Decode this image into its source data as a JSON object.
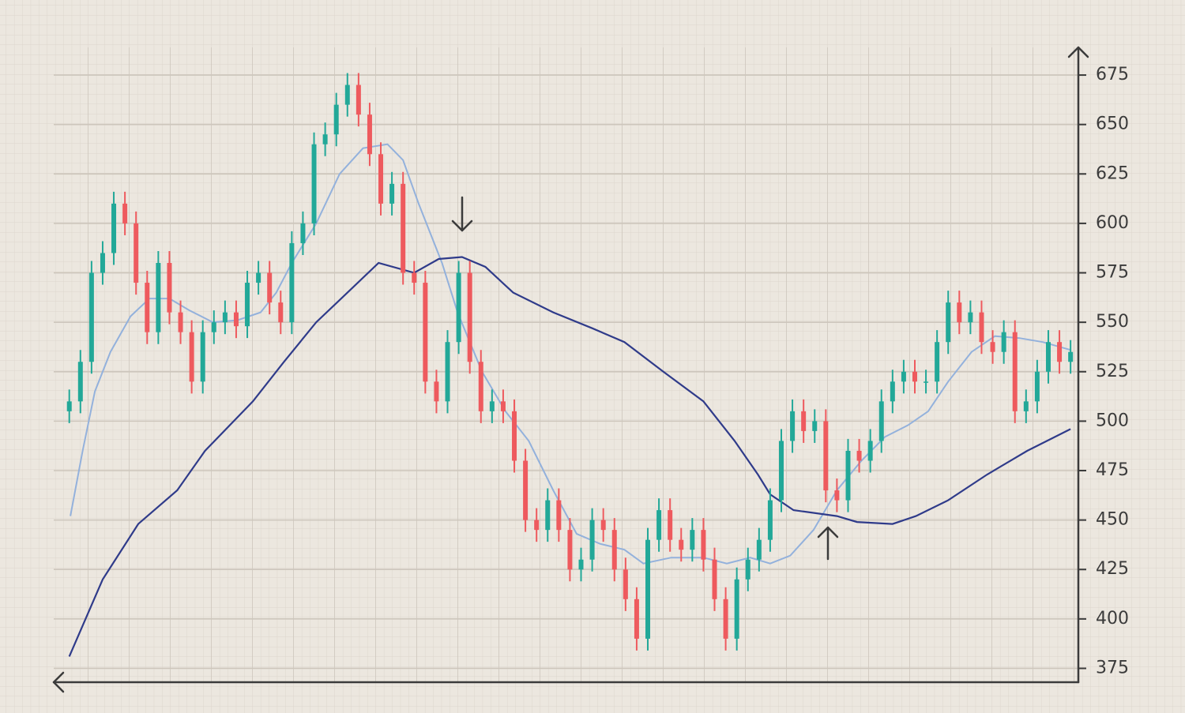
{
  "chart_data": {
    "type": "candlestick",
    "up_color": "#22a898",
    "down_color": "#ee5a5e",
    "ylim": [
      368,
      689
    ],
    "yticks": [
      375,
      400,
      425,
      450,
      475,
      500,
      525,
      550,
      575,
      600,
      625,
      650,
      675
    ],
    "xlim": [
      -1.4,
      90.7
    ],
    "grid": true,
    "open": [
      505,
      510,
      530,
      575,
      585,
      610,
      600,
      570,
      545,
      580,
      555,
      545,
      520,
      545,
      550,
      555,
      548,
      570,
      575,
      560,
      550,
      590,
      600,
      640,
      645,
      660,
      670,
      655,
      635,
      610,
      620,
      575,
      570,
      520,
      510,
      540,
      575,
      530,
      505,
      510,
      505,
      480,
      450,
      445,
      460,
      445,
      425,
      430,
      450,
      445,
      425,
      410,
      390,
      440,
      455,
      440,
      435,
      445,
      430,
      410,
      390,
      420,
      430,
      440,
      460,
      490,
      505,
      495,
      500,
      465,
      460,
      485,
      480,
      490,
      510,
      520,
      525,
      520,
      520,
      540,
      560,
      550,
      555,
      540,
      535,
      545,
      505,
      510,
      525,
      540,
      530
    ],
    "high": [
      516,
      536,
      581,
      591,
      616,
      616,
      606,
      576,
      586,
      586,
      561,
      551,
      551,
      556,
      561,
      561,
      576,
      581,
      581,
      566,
      596,
      606,
      646,
      651,
      666,
      676,
      676,
      661,
      641,
      626,
      626,
      581,
      576,
      526,
      546,
      581,
      581,
      536,
      516,
      516,
      511,
      486,
      456,
      466,
      466,
      451,
      436,
      456,
      456,
      451,
      431,
      416,
      446,
      461,
      461,
      446,
      451,
      451,
      436,
      416,
      426,
      436,
      446,
      466,
      496,
      511,
      511,
      506,
      506,
      471,
      491,
      491,
      496,
      516,
      526,
      531,
      531,
      526,
      546,
      566,
      566,
      561,
      561,
      546,
      551,
      551,
      516,
      531,
      546,
      546,
      541
    ],
    "low": [
      499,
      504,
      524,
      569,
      579,
      594,
      564,
      539,
      539,
      549,
      539,
      514,
      514,
      539,
      544,
      542,
      542,
      564,
      554,
      544,
      544,
      584,
      594,
      634,
      639,
      654,
      649,
      629,
      604,
      604,
      569,
      564,
      514,
      504,
      504,
      534,
      524,
      499,
      499,
      499,
      474,
      444,
      439,
      439,
      439,
      419,
      419,
      424,
      439,
      419,
      404,
      384,
      384,
      434,
      434,
      429,
      429,
      424,
      404,
      384,
      384,
      414,
      424,
      434,
      454,
      484,
      489,
      489,
      459,
      454,
      454,
      474,
      474,
      484,
      504,
      514,
      514,
      514,
      514,
      534,
      544,
      544,
      534,
      529,
      529,
      499,
      499,
      504,
      519,
      524,
      524
    ],
    "close": [
      510,
      530,
      575,
      585,
      610,
      600,
      570,
      545,
      580,
      555,
      545,
      520,
      545,
      550,
      555,
      548,
      570,
      575,
      560,
      550,
      590,
      600,
      640,
      645,
      660,
      670,
      655,
      635,
      610,
      620,
      575,
      570,
      520,
      510,
      540,
      575,
      530,
      505,
      510,
      505,
      480,
      450,
      445,
      460,
      445,
      425,
      430,
      450,
      445,
      425,
      410,
      390,
      440,
      455,
      440,
      435,
      445,
      430,
      410,
      390,
      420,
      430,
      440,
      460,
      490,
      505,
      495,
      500,
      465,
      460,
      485,
      480,
      490,
      510,
      520,
      525,
      520,
      520,
      540,
      560,
      550,
      555,
      540,
      535,
      545,
      505,
      510,
      525,
      540,
      530,
      535
    ],
    "lines": [
      {
        "color": "#93b1dc",
        "x": [
          0.1,
          1.2,
          2.3,
          3.7,
          5.5,
          7.2,
          9.0,
          10.8,
          12.9,
          15.1,
          17.2,
          18.6,
          20.0,
          22.2,
          24.3,
          26.4,
          28.6,
          30.0,
          31.4,
          33.5,
          34.9,
          37.1,
          39.2,
          41.3,
          43.5,
          45.6,
          47.7,
          49.9,
          51.6,
          54.1,
          57.0,
          59.1,
          61.2,
          63.0,
          64.8,
          66.9,
          69.0,
          71.2,
          73.3,
          75.4,
          77.2,
          79.0,
          81.1,
          83.2,
          85.4,
          87.5,
          90.0
        ],
        "values": [
          452,
          485,
          515,
          535,
          553,
          562,
          562,
          556,
          550,
          551,
          555,
          565,
          580,
          600,
          625,
          638,
          640,
          632,
          610,
          580,
          555,
          525,
          505,
          490,
          465,
          443,
          438,
          435,
          428,
          431,
          431,
          428,
          431,
          428,
          432,
          445,
          465,
          480,
          492,
          498,
          505,
          520,
          535,
          543,
          542,
          540,
          536
        ]
      },
      {
        "color": "#2f3b8a",
        "x": [
          0,
          3.0,
          6.2,
          9.7,
          12.2,
          16.5,
          19.3,
          22.2,
          25.0,
          27.8,
          31.0,
          33.2,
          35.3,
          37.4,
          39.9,
          43.5,
          47.0,
          49.9,
          53.4,
          57.0,
          59.8,
          61.9,
          63.0,
          65.1,
          69.0,
          70.8,
          74.0,
          76.1,
          79.0,
          82.5,
          86.1,
          90.0
        ],
        "values": [
          381,
          420,
          448,
          465,
          485,
          510,
          530,
          550,
          565,
          580,
          575,
          582,
          583,
          578,
          565,
          555,
          547,
          540,
          525,
          510,
          490,
          473,
          463,
          455,
          452,
          449,
          448,
          452,
          460,
          473,
          485,
          496
        ]
      }
    ]
  }
}
